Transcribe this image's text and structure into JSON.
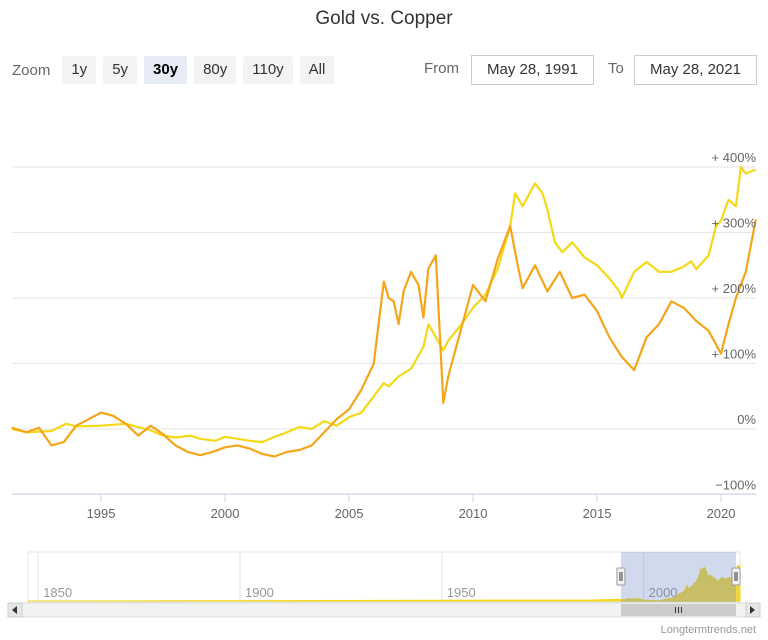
{
  "chart_data": {
    "type": "line",
    "title": "Gold vs. Copper",
    "xlabel": "",
    "ylabel": "",
    "x_range": [
      1991.41,
      2021.41
    ],
    "ylim": [
      -100,
      450
    ],
    "yticks": [
      -100,
      0,
      100,
      200,
      300,
      400
    ],
    "ytick_labels": [
      "−100%",
      "0%",
      "+ 100%",
      "+ 200%",
      "+ 300%",
      "+ 400%"
    ],
    "xticks": [
      1995,
      2000,
      2005,
      2010,
      2015,
      2020
    ],
    "xtick_labels": [
      "1995",
      "2000",
      "2005",
      "2010",
      "2015",
      "2020"
    ],
    "grid": true,
    "legend": "none",
    "series": [
      {
        "name": "Gold",
        "color": "#f5d816",
        "x": [
          1991.4,
          1992.0,
          1993.0,
          1993.6,
          1994.0,
          1995.0,
          1996.0,
          1996.4,
          1997.0,
          1997.5,
          1998.0,
          1998.6,
          1999.0,
          1999.6,
          2000.0,
          2000.5,
          2001.0,
          2001.5,
          2002.0,
          2002.5,
          2003.0,
          2003.5,
          2004.0,
          2004.5,
          2005.0,
          2005.5,
          2006.0,
          2006.4,
          2006.6,
          2007.0,
          2007.5,
          2008.0,
          2008.2,
          2008.8,
          2009.0,
          2009.5,
          2010.0,
          2010.5,
          2011.0,
          2011.5,
          2011.7,
          2012.0,
          2012.5,
          2012.8,
          2013.0,
          2013.3,
          2013.6,
          2014.0,
          2014.5,
          2015.0,
          2015.5,
          2015.9,
          2016.0,
          2016.5,
          2017.0,
          2017.5,
          2018.0,
          2018.5,
          2018.8,
          2019.0,
          2019.5,
          2019.8,
          2020.0,
          2020.3,
          2020.6,
          2020.8,
          2021.0,
          2021.4
        ],
        "y": [
          0,
          -5,
          -3,
          8,
          4,
          5,
          8,
          4,
          -2,
          -10,
          -13,
          -10,
          -15,
          -18,
          -12,
          -15,
          -18,
          -20,
          -12,
          -5,
          3,
          0,
          12,
          5,
          18,
          25,
          50,
          70,
          65,
          80,
          92,
          125,
          160,
          120,
          135,
          158,
          185,
          205,
          245,
          310,
          360,
          340,
          375,
          360,
          335,
          285,
          270,
          285,
          262,
          250,
          230,
          210,
          200,
          240,
          255,
          240,
          240,
          248,
          256,
          244,
          265,
          310,
          318,
          350,
          340,
          400,
          390,
          396
        ]
      },
      {
        "name": "Copper",
        "color": "#f5a51a",
        "x": [
          1991.4,
          1992.0,
          1992.5,
          1993.0,
          1993.5,
          1994.0,
          1994.5,
          1995.0,
          1995.5,
          1996.0,
          1996.5,
          1997.0,
          1997.5,
          1998.0,
          1998.5,
          1999.0,
          1999.5,
          2000.0,
          2000.5,
          2001.0,
          2001.5,
          2002.0,
          2002.5,
          2003.0,
          2003.5,
          2004.0,
          2004.5,
          2005.0,
          2005.5,
          2006.0,
          2006.4,
          2006.6,
          2006.8,
          2007.0,
          2007.2,
          2007.5,
          2007.8,
          2008.0,
          2008.2,
          2008.5,
          2008.8,
          2009.0,
          2009.5,
          2010.0,
          2010.5,
          2011.0,
          2011.5,
          2011.8,
          2012.0,
          2012.5,
          2013.0,
          2013.5,
          2014.0,
          2014.5,
          2015.0,
          2015.5,
          2016.0,
          2016.5,
          2017.0,
          2017.5,
          2018.0,
          2018.5,
          2019.0,
          2019.5,
          2020.0,
          2020.3,
          2020.6,
          2021.0,
          2021.4
        ],
        "y": [
          2,
          -5,
          2,
          -25,
          -20,
          5,
          15,
          25,
          20,
          8,
          -10,
          5,
          -8,
          -25,
          -35,
          -40,
          -35,
          -28,
          -25,
          -30,
          -38,
          -42,
          -35,
          -32,
          -25,
          -5,
          15,
          30,
          60,
          100,
          225,
          200,
          195,
          160,
          210,
          240,
          220,
          170,
          245,
          265,
          40,
          80,
          150,
          220,
          195,
          260,
          310,
          250,
          215,
          250,
          210,
          240,
          200,
          205,
          180,
          140,
          110,
          90,
          140,
          160,
          195,
          185,
          165,
          150,
          115,
          160,
          200,
          240,
          320
        ]
      }
    ],
    "navigator": {
      "xtick_labels": [
        "1850",
        "1900",
        "1950",
        "2000"
      ],
      "x_range": [
        1845,
        2021.4
      ],
      "window": [
        1991.41,
        2021.41
      ]
    }
  },
  "toolbar": {
    "zoom_label": "Zoom",
    "buttons": [
      "1y",
      "5y",
      "30y",
      "80y",
      "110y",
      "All"
    ],
    "active_index": 2,
    "from_label": "From",
    "from_value": "May 28, 1991",
    "to_label": "To",
    "to_value": "May 28, 2021"
  },
  "credit": "Longtermtrends.net"
}
